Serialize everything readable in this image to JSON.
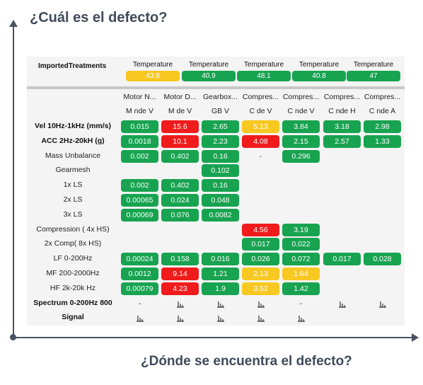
{
  "questions": {
    "top": "¿Cuál es el defecto?",
    "bottom": "¿Dónde se encuentra el defecto?"
  },
  "imported_treatments_label": "ImportedTreatments",
  "temperatures": [
    {
      "label": "Temperature",
      "value": "43.9",
      "status": "yellow"
    },
    {
      "label": "Temperature",
      "value": "40.9",
      "status": "green"
    },
    {
      "label": "Temperature",
      "value": "48.1",
      "status": "green"
    },
    {
      "label": "Temperature",
      "value": "40.8",
      "status": "green"
    },
    {
      "label": "Temperature",
      "value": "47",
      "status": "green"
    }
  ],
  "columns": [
    {
      "name": "Motor N...",
      "location": "M nde V"
    },
    {
      "name": "Motor D...",
      "location": "M de V"
    },
    {
      "name": "Gearbox...",
      "location": "GB V"
    },
    {
      "name": "Compres...",
      "location": "C de V"
    },
    {
      "name": "Compres...",
      "location": "C nde V"
    },
    {
      "name": "Compres...",
      "location": "C nde H"
    },
    {
      "name": "Compres...",
      "location": "C nde A"
    }
  ],
  "rows": [
    {
      "label": "Vel 10Hz-1kHz (mm/s)",
      "bold": true,
      "cells": [
        {
          "v": "0.015",
          "s": "green"
        },
        {
          "v": "15.6",
          "s": "red"
        },
        {
          "v": "2.65",
          "s": "green"
        },
        {
          "v": "5.13",
          "s": "yellow"
        },
        {
          "v": "3.84",
          "s": "green"
        },
        {
          "v": "3.18",
          "s": "green"
        },
        {
          "v": "2.98",
          "s": "green"
        }
      ]
    },
    {
      "label": "ACC 2Hz-20kH (g)",
      "bold": true,
      "cells": [
        {
          "v": "0.0018",
          "s": "green"
        },
        {
          "v": "10.1",
          "s": "red"
        },
        {
          "v": "2.23",
          "s": "green"
        },
        {
          "v": "4.08",
          "s": "red"
        },
        {
          "v": "2.15",
          "s": "green"
        },
        {
          "v": "2.57",
          "s": "green"
        },
        {
          "v": "1.33",
          "s": "green"
        }
      ]
    },
    {
      "label": "Mass Unbalance",
      "bold": false,
      "cells": [
        {
          "v": "0.002",
          "s": "green"
        },
        {
          "v": "0.402",
          "s": "green"
        },
        {
          "v": "0.16",
          "s": "green"
        },
        {
          "v": "-",
          "s": "dash"
        },
        {
          "v": "0.296",
          "s": "green"
        },
        null,
        null
      ]
    },
    {
      "label": "Gearmesh",
      "bold": false,
      "cells": [
        null,
        null,
        {
          "v": "0.102",
          "s": "green"
        },
        null,
        null,
        null,
        null
      ]
    },
    {
      "label": "1x LS",
      "bold": false,
      "cells": [
        {
          "v": "0.002",
          "s": "green"
        },
        {
          "v": "0.402",
          "s": "green"
        },
        {
          "v": "0.16",
          "s": "green"
        },
        null,
        null,
        null,
        null
      ]
    },
    {
      "label": "2x LS",
      "bold": false,
      "cells": [
        {
          "v": "0.00065",
          "s": "green"
        },
        {
          "v": "0.024",
          "s": "green"
        },
        {
          "v": "0.048",
          "s": "green"
        },
        null,
        null,
        null,
        null
      ]
    },
    {
      "label": "3x LS",
      "bold": false,
      "cells": [
        {
          "v": "0.00069",
          "s": "green"
        },
        {
          "v": "0.076",
          "s": "green"
        },
        {
          "v": "0.0082",
          "s": "green"
        },
        null,
        null,
        null,
        null
      ]
    },
    {
      "label": "Compression ( 4x HS)",
      "bold": false,
      "cells": [
        null,
        null,
        null,
        {
          "v": "4.56",
          "s": "red"
        },
        {
          "v": "3.19",
          "s": "green"
        },
        null,
        null
      ]
    },
    {
      "label": "2x Comp( 8x HS)",
      "bold": false,
      "cells": [
        null,
        null,
        null,
        {
          "v": "0.017",
          "s": "green"
        },
        {
          "v": "0.022",
          "s": "green"
        },
        null,
        null
      ]
    },
    {
      "label": "LF 0-200Hz",
      "bold": false,
      "cells": [
        {
          "v": "0.00024",
          "s": "green"
        },
        {
          "v": "0.158",
          "s": "green"
        },
        {
          "v": "0.016",
          "s": "green"
        },
        {
          "v": "0.026",
          "s": "green"
        },
        {
          "v": "0.072",
          "s": "green"
        },
        {
          "v": "0.017",
          "s": "green"
        },
        {
          "v": "0.028",
          "s": "green"
        }
      ]
    },
    {
      "label": "MF 200-2000Hz",
      "bold": false,
      "cells": [
        {
          "v": "0.0012",
          "s": "green"
        },
        {
          "v": "9.14",
          "s": "red"
        },
        {
          "v": "1.21",
          "s": "green"
        },
        {
          "v": "2.13",
          "s": "yellow"
        },
        {
          "v": "1.64",
          "s": "yellow"
        },
        null,
        null
      ]
    },
    {
      "label": "HF 2k-20k Hz",
      "bold": false,
      "cells": [
        {
          "v": "0.00079",
          "s": "green"
        },
        {
          "v": "4.23",
          "s": "red"
        },
        {
          "v": "1.9",
          "s": "green"
        },
        {
          "v": "3.52",
          "s": "yellow"
        },
        {
          "v": "1.42",
          "s": "green"
        },
        null,
        null
      ]
    },
    {
      "label": "Spectrum 0-200Hz 800",
      "bold": true,
      "cells": [
        {
          "v": "-",
          "s": "dash"
        },
        {
          "icon": "spectrum-icon"
        },
        {
          "icon": "spectrum-icon"
        },
        {
          "icon": "spectrum-icon"
        },
        {
          "v": "-",
          "s": "dash"
        },
        {
          "icon": "spectrum-icon"
        },
        {
          "icon": "spectrum-icon"
        }
      ]
    },
    {
      "label": "Signal",
      "bold": true,
      "cells": [
        {
          "icon": "spectrum-icon"
        },
        {
          "icon": "spectrum-icon"
        },
        {
          "icon": "spectrum-icon"
        },
        {
          "icon": "spectrum-icon"
        },
        {
          "icon": "spectrum-icon"
        },
        null,
        null
      ]
    }
  ],
  "colors": {
    "green": "#18a350",
    "red": "#f01c1c",
    "yellow": "#f7c821"
  }
}
